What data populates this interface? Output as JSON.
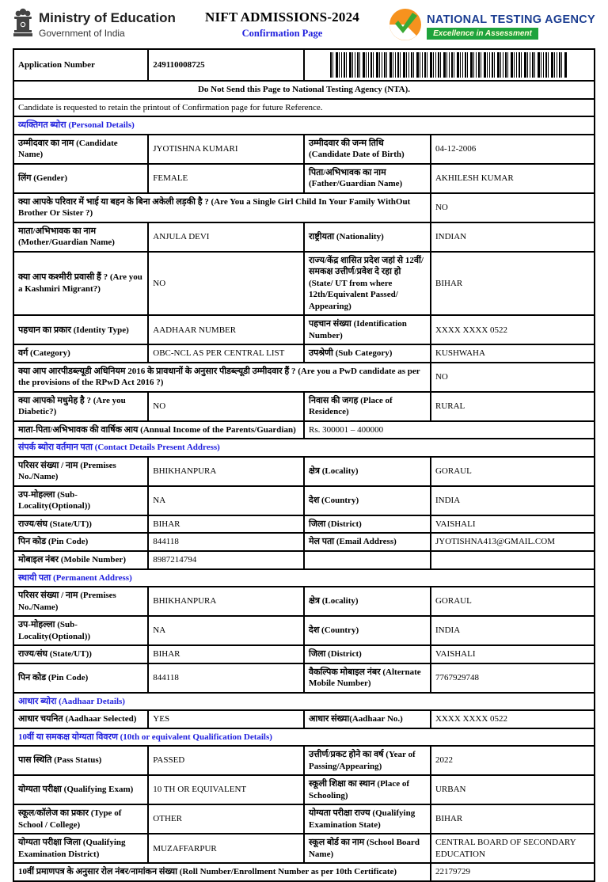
{
  "colors": {
    "accent_blue": "#2020dd",
    "nta_navy": "#1b3d91",
    "badge_green": "#1ea33c",
    "logo_orange": "#f6921e",
    "logo_green": "#39a935",
    "emblem_gray": "#444444"
  },
  "header": {
    "ministry": "Ministry of Education",
    "government": "Government of India",
    "title": "NIFT ADMISSIONS-2024",
    "subtitle": "Confirmation Page",
    "agency_name": "NATIONAL TESTING AGENCY",
    "agency_tagline": "Excellence in Assessment"
  },
  "application": {
    "label": "Application Number",
    "number": "249110008725"
  },
  "notices": {
    "do_not_send": "Do Not Send this Page to National Testing Agency (NTA).",
    "retain": "Candidate is requested to retain the printout of Confirmation page for future Reference."
  },
  "sections": [
    {
      "id": "personal-details",
      "title": "व्यक्तिगत ब्योरा (Personal Details)",
      "rows": [
        {
          "type": "four",
          "cells": [
            "उम्मीदवार का नाम (Candidate Name)",
            "JYOTISHNA KUMARI",
            "उम्मीदवार की जन्म तिथि (Candidate Date of Birth)",
            "04-12-2006"
          ]
        },
        {
          "type": "four",
          "cells": [
            "लिंग (Gender)",
            "FEMALE",
            "पिता/अभिभावक का नाम (Father/Guardian Name)",
            "AKHILESH KUMAR"
          ]
        },
        {
          "type": "wide",
          "cells": [
            "क्या आपके परिवार में भाई या बहन के बिना अकेली लड़की है ? (Are You a Single Girl Child In Your Family WithOut Brother Or Sister ?)",
            "NO"
          ]
        },
        {
          "type": "four",
          "cells": [
            "माता/अभिभावक का नाम (Mother/Guardian Name)",
            "ANJULA DEVI",
            "राष्ट्रीयता (Nationality)",
            "INDIAN"
          ]
        },
        {
          "type": "four",
          "cells": [
            "क्या आप कश्मीरी प्रवासी हैं ? (Are you a Kashmiri Migrant?)",
            "NO",
            "राज्य/केंद्र शासित प्रदेश जहां से 12वीं/समकक्ष उत्तीर्ण/प्रवेश दे रहा हो (State/ UT from where 12th/Equivalent Passed/ Appearing)",
            "BIHAR"
          ]
        },
        {
          "type": "four",
          "cells": [
            "पहचान का प्रकार (Identity Type)",
            "AADHAAR NUMBER",
            "पहचान संख्या (Identification Number)",
            "XXXX XXXX 0522"
          ]
        },
        {
          "type": "four",
          "cells": [
            "वर्ग (Category)",
            "OBC-NCL AS PER CENTRAL LIST",
            "उपश्रेणी (Sub Category)",
            "KUSHWAHA"
          ]
        },
        {
          "type": "wide",
          "cells": [
            "क्या आप आरपीडब्ल्यूडी अधिनियम 2016 के प्रावधानों के अनुसार पीडब्ल्यूडी उम्मीदवार हैं ? (Are you a PwD candidate as per the provisions of the RPwD Act 2016 ?)",
            "NO"
          ]
        },
        {
          "type": "four",
          "cells": [
            "क्या आपको मधुमेह है ? (Are you Diabetic?)",
            "NO",
            "निवास की जगह (Place of Residence)",
            "RURAL"
          ]
        },
        {
          "type": "split",
          "cells": [
            "माता-पिता/अभिभावक की वार्षिक आय (Annual Income of the Parents/Guardian)",
            "Rs. 300001 – 400000"
          ]
        }
      ]
    },
    {
      "id": "contact-present-address",
      "title": "संपर्क ब्योरा वर्तमान पता (Contact Details Present Address)",
      "rows": [
        {
          "type": "four",
          "cells": [
            "परिसर संख्या / नाम (Premises No./Name)",
            "BHIKHANPURA",
            "क्षेत्र (Locality)",
            "GORAUL"
          ]
        },
        {
          "type": "four",
          "cells": [
            "उप-मोहल्ला (Sub-Locality(Optional))",
            "NA",
            "देश (Country)",
            "INDIA"
          ]
        },
        {
          "type": "four",
          "cells": [
            "राज्य/संघ (State/UT))",
            "BIHAR",
            "जिला (District)",
            "VAISHALI"
          ]
        },
        {
          "type": "four",
          "cells": [
            "पिन कोड (Pin Code)",
            "844118",
            "मेल पता (Email Address)",
            "JYOTISHNA413@GMAIL.COM"
          ]
        },
        {
          "type": "four",
          "cells": [
            "मोबाइल नंबर (Mobile Number)",
            "8987214794",
            "",
            ""
          ]
        }
      ]
    },
    {
      "id": "permanent-address",
      "title": "स्थायी पता (Permanent Address)",
      "rows": [
        {
          "type": "four",
          "cells": [
            "परिसर संख्या / नाम (Premises No./Name)",
            "BHIKHANPURA",
            "क्षेत्र (Locality)",
            "GORAUL"
          ]
        },
        {
          "type": "four",
          "cells": [
            "उप-मोहल्ला (Sub-Locality(Optional))",
            "NA",
            "देश (Country)",
            "INDIA"
          ]
        },
        {
          "type": "four",
          "cells": [
            "राज्य/संघ (State/UT))",
            "BIHAR",
            "जिला (District)",
            "VAISHALI"
          ]
        },
        {
          "type": "four",
          "cells": [
            "पिन कोड (Pin Code)",
            "844118",
            "वैकल्पिक मोबाइल नंबर (Alternate Mobile Number)",
            "7767929748"
          ]
        }
      ]
    },
    {
      "id": "aadhaar-details",
      "title": "आधार ब्योरा (Aadhaar Details)",
      "rows": [
        {
          "type": "four",
          "cells": [
            "आधार चयनित (Aadhaar Selected)",
            "YES",
            "आधार संख्या(Aadhaar No.)",
            "XXXX XXXX 0522"
          ]
        }
      ]
    },
    {
      "id": "qualification-details",
      "title": "10वीं या समकक्ष योग्यता विवरण (10th or equivalent Qualification Details)",
      "rows": [
        {
          "type": "four",
          "cells": [
            "पास स्थिति (Pass Status)",
            "PASSED",
            "उत्तीर्ण/प्रकट होने का वर्ष (Year of Passing/Appearing)",
            "2022"
          ]
        },
        {
          "type": "four",
          "cells": [
            "योग्यता परीक्षा (Qualifying Exam)",
            "10 TH OR EQUIVALENT",
            "स्कूली शिक्षा का स्थान (Place of Schooling)",
            "URBAN"
          ]
        },
        {
          "type": "four",
          "cells": [
            "स्कूल/कॉलेज का प्रकार (Type of School / College)",
            "OTHER",
            "योग्यता परीक्षा राज्य (Qualifying Examination State)",
            "BIHAR"
          ]
        },
        {
          "type": "four",
          "cells": [
            "योग्यता परीक्षा जिला (Qualifying Examination District)",
            "MUZAFFARPUR",
            "स्कूल बोर्ड का नाम (School Board Name)",
            "CENTRAL BOARD OF SECONDARY EDUCATION"
          ]
        },
        {
          "type": "wide",
          "cells": [
            "10वीं प्रमाणपत्र के अनुसार रोल नंबर/नामांकन संख्या (Roll Number/Enrollment Number as per 10th Certificate)",
            "22179729"
          ]
        }
      ]
    }
  ]
}
